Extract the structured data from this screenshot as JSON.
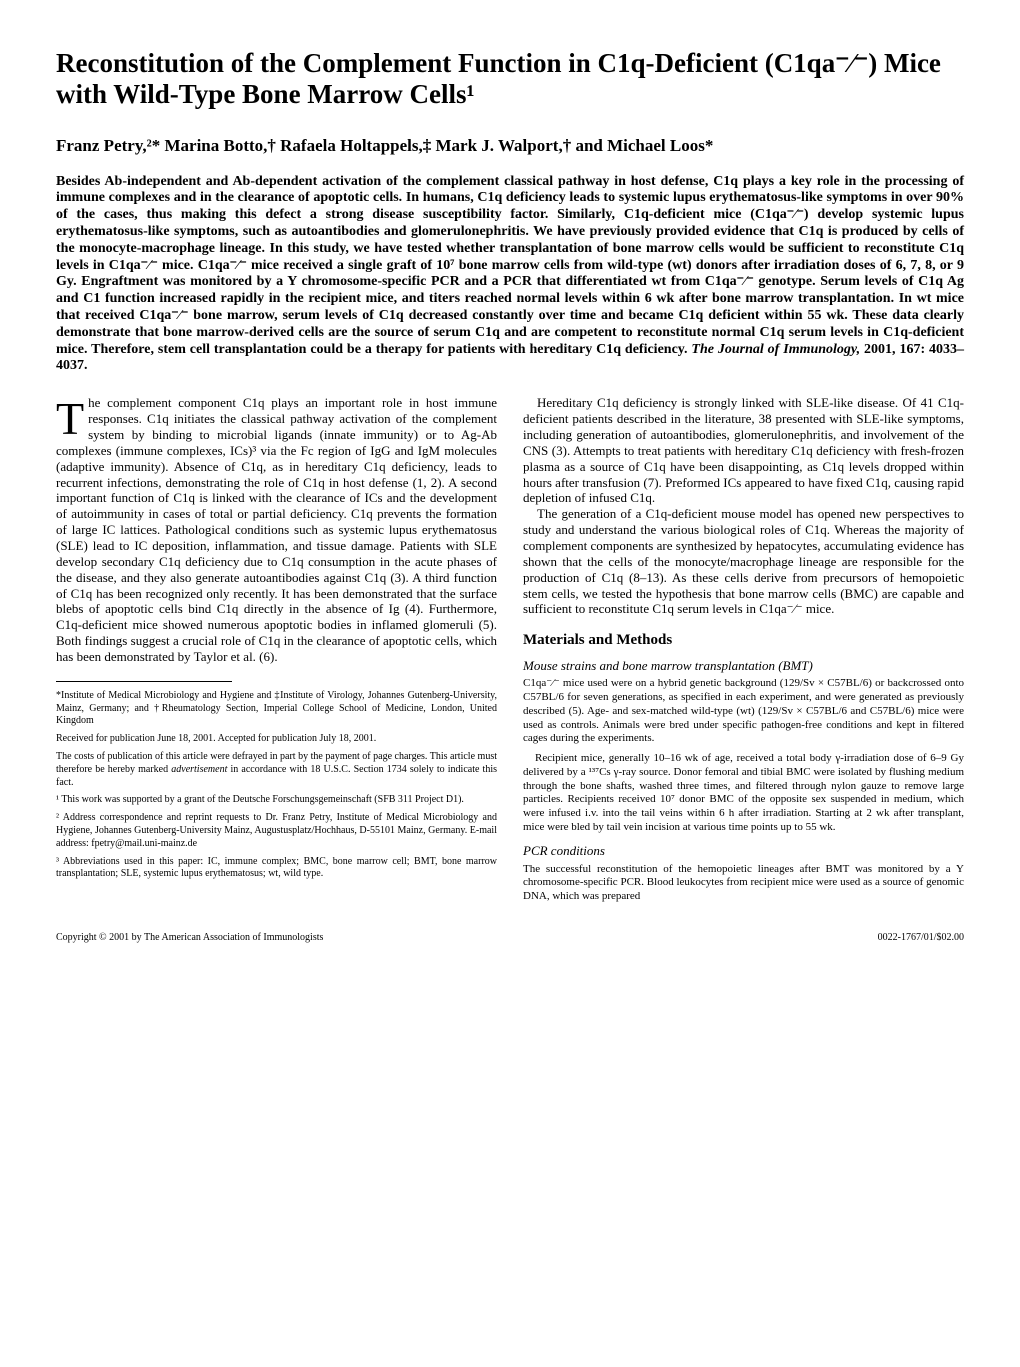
{
  "title": "Reconstitution of the Complement Function in C1q-Deficient (C1qa⁻⁄⁻) Mice with Wild-Type Bone Marrow Cells¹",
  "authors": "Franz Petry,²* Marina Botto,† Rafaela Holtappels,‡ Mark J. Walport,† and Michael Loos*",
  "abstract": "Besides Ab-independent and Ab-dependent activation of the complement classical pathway in host defense, C1q plays a key role in the processing of immune complexes and in the clearance of apoptotic cells. In humans, C1q deficiency leads to systemic lupus erythematosus-like symptoms in over 90% of the cases, thus making this defect a strong disease susceptibility factor. Similarly, C1q-deficient mice (C1qa⁻⁄⁻) develop systemic lupus erythematosus-like symptoms, such as autoantibodies and glomerulonephritis. We have previously provided evidence that C1q is produced by cells of the monocyte-macrophage lineage. In this study, we have tested whether transplantation of bone marrow cells would be sufficient to reconstitute C1q levels in C1qa⁻⁄⁻ mice. C1qa⁻⁄⁻ mice received a single graft of 10⁷ bone marrow cells from wild-type (wt) donors after irradiation doses of 6, 7, 8, or 9 Gy. Engraftment was monitored by a Y chromosome-specific PCR and a PCR that differentiated wt from C1qa⁻⁄⁻ genotype. Serum levels of C1q Ag and C1 function increased rapidly in the recipient mice, and titers reached normal levels within 6 wk after bone marrow transplantation. In wt mice that received C1qa⁻⁄⁻ bone marrow, serum levels of C1q decreased constantly over time and became C1q deficient within 55 wk. These data clearly demonstrate that bone marrow-derived cells are the source of serum C1q and are competent to reconstitute normal C1q serum levels in C1q-deficient mice. Therefore, stem cell transplantation could be a therapy for patients with hereditary C1q deficiency.",
  "journal_line": "The Journal of Immunology,",
  "journal_info": " 2001, 167: 4033–4037.",
  "left_col": {
    "p1": "The complement component C1q plays an important role in host immune responses. C1q initiates the classical pathway activation of the complement system by binding to microbial ligands (innate immunity) or to Ag-Ab complexes (immune complexes, ICs)³ via the Fc region of IgG and IgM molecules (adaptive immunity). Absence of C1q, as in hereditary C1q deficiency, leads to recurrent infections, demonstrating the role of C1q in host defense (1, 2). A second important function of C1q is linked with the clearance of ICs and the development of autoimmunity in cases of total or partial deficiency. C1q prevents the formation of large IC lattices. Pathological conditions such as systemic lupus erythematosus (SLE) lead to IC deposition, inflammation, and tissue damage. Patients with SLE develop secondary C1q deficiency due to C1q consumption in the acute phases of the disease, and they also generate autoantibodies against C1q (3). A third function of C1q has been recognized only recently. It has been demonstrated that the surface blebs of apoptotic cells bind C1q directly in the absence of Ig (4). Furthermore, C1q-deficient mice showed numerous apoptotic bodies in inflamed glomeruli (5). Both findings suggest a crucial role of C1q in the clearance of apoptotic cells, which has been demonstrated by Taylor et al. (6)."
  },
  "footnotes": {
    "f1": "*Institute of Medical Microbiology and Hygiene and ‡Institute of Virology, Johannes Gutenberg-University, Mainz, Germany; and †Rheumatology Section, Imperial College School of Medicine, London, United Kingdom",
    "f2": "Received for publication June 18, 2001. Accepted for publication July 18, 2001.",
    "f3a": "The costs of publication of this article were defrayed in part by the payment of page charges. This article must therefore be hereby marked ",
    "f3b": "advertisement",
    "f3c": " in accordance with 18 U.S.C. Section 1734 solely to indicate this fact.",
    "f4": "¹ This work was supported by a grant of the Deutsche Forschungsgemeinschaft (SFB 311 Project D1).",
    "f5": "² Address correspondence and reprint requests to Dr. Franz Petry, Institute of Medical Microbiology and Hygiene, Johannes Gutenberg-University Mainz, Augustusplatz/Hochhaus, D-55101 Mainz, Germany. E-mail address: fpetry@mail.uni-mainz.de",
    "f6": "³ Abbreviations used in this paper: IC, immune complex; BMC, bone marrow cell; BMT, bone marrow transplantation; SLE, systemic lupus erythematosus; wt, wild type."
  },
  "right_col": {
    "p1": "Hereditary C1q deficiency is strongly linked with SLE-like disease. Of 41 C1q-deficient patients described in the literature, 38 presented with SLE-like symptoms, including generation of autoantibodies, glomerulonephritis, and involvement of the CNS (3). Attempts to treat patients with hereditary C1q deficiency with fresh-frozen plasma as a source of C1q have been disappointing, as C1q levels dropped within hours after transfusion (7). Preformed ICs appeared to have fixed C1q, causing rapid depletion of infused C1q.",
    "p2": "The generation of a C1q-deficient mouse model has opened new perspectives to study and understand the various biological roles of C1q. Whereas the majority of complement components are synthesized by hepatocytes, accumulating evidence has shown that the cells of the monocyte/macrophage lineage are responsible for the production of C1q (8–13). As these cells derive from precursors of hemopoietic stem cells, we tested the hypothesis that bone marrow cells (BMC) are capable and sufficient to reconstitute C1q serum levels in C1qa⁻⁄⁻ mice.",
    "section": "Materials and Methods",
    "sub1": "Mouse strains and bone marrow transplantation (BMT)",
    "mp1": "C1qa⁻⁄⁻ mice used were on a hybrid genetic background (129/Sv × C57BL/6) or backcrossed onto C57BL/6 for seven generations, as specified in each experiment, and were generated as previously described (5). Age- and sex-matched wild-type (wt) (129/Sv × C57BL/6 and C57BL/6) mice were used as controls. Animals were bred under specific pathogen-free conditions and kept in filtered cages during the experiments.",
    "mp2": "Recipient mice, generally 10–16 wk of age, received a total body γ-irradiation dose of 6–9 Gy delivered by a ¹³⁷Cs γ-ray source. Donor femoral and tibial BMC were isolated by flushing medium through the bone shafts, washed three times, and filtered through nylon gauze to remove large particles. Recipients received 10⁷ donor BMC of the opposite sex suspended in medium, which were infused i.v. into the tail veins within 6 h after irradiation. Starting at 2 wk after transplant, mice were bled by tail vein incision at various time points up to 55 wk.",
    "sub2": "PCR conditions",
    "mp3": "The successful reconstitution of the hemopoietic lineages after BMT was monitored by a Y chromosome-specific PCR. Blood leukocytes from recipient mice were used as a source of genomic DNA, which was prepared"
  },
  "footer": {
    "left": "Copyright © 2001 by The American Association of Immunologists",
    "right": "0022-1767/01/$02.00"
  }
}
